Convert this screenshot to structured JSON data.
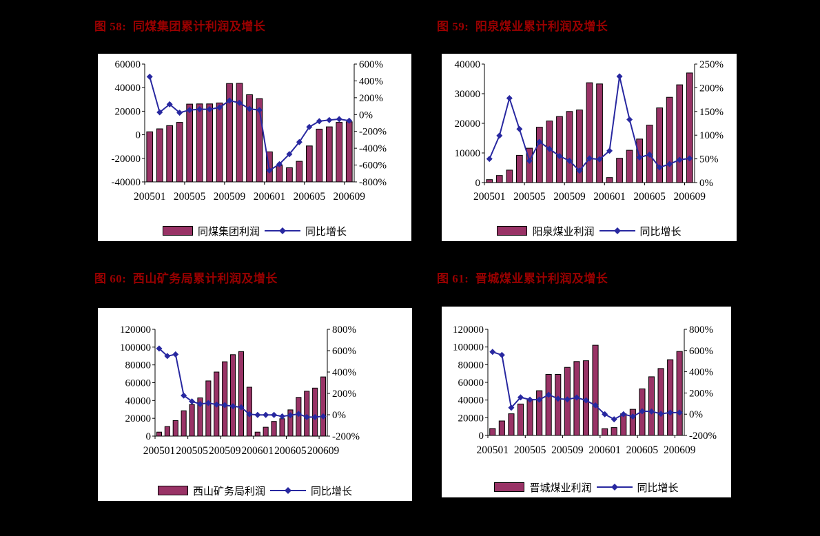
{
  "page": {
    "background_color": "#000000",
    "panel_color": "#ffffff",
    "title_color": "#990000"
  },
  "chart_data": [
    {
      "type": "bar",
      "title": "图 58:  同煤集团累计利润及增长",
      "categories": [
        "200501",
        "200502",
        "200503",
        "200504",
        "200505",
        "200506",
        "200507",
        "200508",
        "200509",
        "200510",
        "200511",
        "200512",
        "200601",
        "200602",
        "200603",
        "200604",
        "200605",
        "200606",
        "200607",
        "200608",
        "200609"
      ],
      "x_tick_labels": [
        "200501",
        "200505",
        "200509",
        "200601",
        "200605",
        "200609"
      ],
      "series": [
        {
          "name": "同煤集团利润",
          "type": "bar",
          "axis": "left",
          "values": [
            2500,
            5000,
            7800,
            10500,
            26000,
            26200,
            26200,
            27000,
            43500,
            43700,
            34000,
            30700,
            -14500,
            -26000,
            -28000,
            -22500,
            -9500,
            4800,
            6700,
            10500,
            11000
          ]
        },
        {
          "name": "同比增长",
          "type": "line",
          "axis": "right",
          "unit": "%",
          "values": [
            450,
            27,
            122,
            22,
            54,
            63,
            63,
            84,
            166,
            139,
            68,
            54,
            -664,
            -590,
            -470,
            -327,
            -147,
            -79,
            -65,
            -54,
            -73
          ]
        }
      ],
      "left_axis": {
        "min": -40000,
        "max": 60000,
        "step": 20000
      },
      "right_axis": {
        "min": -800,
        "max": 600,
        "step": 200,
        "unit": "%"
      },
      "colors": {
        "bar": "#993366",
        "line": "#2828A0"
      },
      "legend_position": "bottom",
      "grid": false
    },
    {
      "type": "bar",
      "title": "图 59:  阳泉煤业累计利润及增长",
      "categories": [
        "200501",
        "200502",
        "200503",
        "200504",
        "200505",
        "200506",
        "200507",
        "200508",
        "200509",
        "200510",
        "200511",
        "200512",
        "200601",
        "200602",
        "200603",
        "200604",
        "200605",
        "200606",
        "200607",
        "200608",
        "200609"
      ],
      "x_tick_labels": [
        "200501",
        "200505",
        "200509",
        "200601",
        "200605",
        "200609"
      ],
      "series": [
        {
          "name": "阳泉煤业利润",
          "type": "bar",
          "axis": "left",
          "values": [
            1000,
            2400,
            4200,
            9200,
            11600,
            18700,
            20800,
            22300,
            24000,
            24500,
            33700,
            33300,
            1700,
            8200,
            10900,
            14700,
            19400,
            25200,
            28800,
            33000,
            37000
          ]
        },
        {
          "name": "同比增长",
          "type": "line",
          "axis": "right",
          "unit": "%",
          "values": [
            50,
            99,
            178,
            113,
            46,
            86,
            71,
            56,
            46,
            25,
            51,
            49,
            67,
            224,
            133,
            53,
            59,
            32,
            39,
            48,
            51
          ]
        }
      ],
      "left_axis": {
        "min": 0,
        "max": 40000,
        "step": 10000
      },
      "right_axis": {
        "min": 0,
        "max": 250,
        "step": 50,
        "unit": "%"
      },
      "colors": {
        "bar": "#993366",
        "line": "#2828A0"
      },
      "legend_position": "bottom",
      "grid": false
    },
    {
      "type": "bar",
      "title": "图 60:  西山矿务局累计利润及增长",
      "categories": [
        "200501",
        "200502",
        "200503",
        "200504",
        "200505",
        "200506",
        "200507",
        "200508",
        "200509",
        "200510",
        "200511",
        "200512",
        "200601",
        "200602",
        "200603",
        "200604",
        "200605",
        "200606",
        "200607",
        "200608",
        "200609"
      ],
      "x_tick_labels": [
        "200501",
        "200505",
        "200509",
        "200601",
        "200605",
        "200609"
      ],
      "series": [
        {
          "name": "西山矿务局利润",
          "type": "bar",
          "axis": "left",
          "values": [
            4500,
            10800,
            17500,
            28500,
            35500,
            43000,
            62000,
            72000,
            83500,
            91500,
            95000,
            55000,
            4500,
            10000,
            16500,
            19500,
            29500,
            43500,
            50500,
            54000,
            66500
          ]
        },
        {
          "name": "同比增长",
          "type": "line",
          "axis": "right",
          "unit": "%",
          "values": [
            620,
            550,
            565,
            180,
            125,
            100,
            110,
            95,
            90,
            80,
            70,
            5,
            -2,
            -2,
            -2,
            -15,
            -5,
            8,
            -22,
            -22,
            -15
          ]
        }
      ],
      "left_axis": {
        "min": 0,
        "max": 120000,
        "step": 20000
      },
      "right_axis": {
        "min": -200,
        "max": 800,
        "step": 200,
        "unit": "%"
      },
      "colors": {
        "bar": "#993366",
        "line": "#2828A0"
      },
      "legend_position": "bottom",
      "grid": false
    },
    {
      "type": "bar",
      "title": "图 61:  晋城煤业累计利润及增长",
      "categories": [
        "200501",
        "200502",
        "200503",
        "200504",
        "200505",
        "200506",
        "200507",
        "200508",
        "200509",
        "200510",
        "200511",
        "200512",
        "200601",
        "200602",
        "200603",
        "200604",
        "200605",
        "200606",
        "200607",
        "200608",
        "200609"
      ],
      "x_tick_labels": [
        "200501",
        "200505",
        "200509",
        "200601",
        "200605",
        "200609"
      ],
      "series": [
        {
          "name": "晋城煤业利润",
          "type": "bar",
          "axis": "left",
          "values": [
            7800,
            16400,
            24500,
            35500,
            41000,
            50600,
            69000,
            69000,
            77000,
            83500,
            84500,
            102000,
            7600,
            8900,
            24500,
            29500,
            52700,
            66300,
            75700,
            85600,
            95000
          ]
        },
        {
          "name": "同比增长",
          "type": "line",
          "axis": "right",
          "unit": "%",
          "values": [
            587,
            558,
            61,
            159,
            137,
            137,
            183,
            146,
            139,
            157,
            130,
            83,
            0,
            -48,
            0,
            -22,
            28,
            26,
            4,
            15,
            15
          ]
        }
      ],
      "left_axis": {
        "min": 0,
        "max": 120000,
        "step": 20000
      },
      "right_axis": {
        "min": -200,
        "max": 800,
        "step": 200,
        "unit": "%"
      },
      "colors": {
        "bar": "#993366",
        "line": "#2828A0"
      },
      "legend_position": "bottom",
      "grid": false
    }
  ]
}
